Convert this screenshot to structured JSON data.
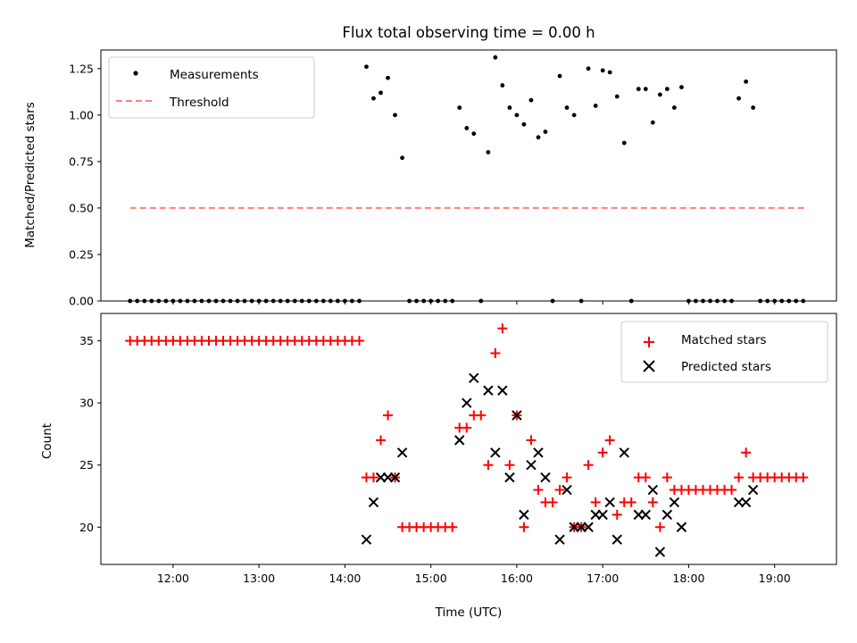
{
  "chart_data": [
    {
      "type": "scatter",
      "title": "Flux total observing time = 0.00 h",
      "xlabel": "",
      "ylabel": "Matched/Predicted stars",
      "ylim": [
        0,
        1.35
      ],
      "yticks": [
        "0.00",
        "0.25",
        "0.50",
        "0.75",
        "1.00",
        "1.25"
      ],
      "legend_position": "top-left",
      "series": [
        {
          "name": "Measurements",
          "marker": "dot",
          "color": "#000000",
          "x": [
            11.5,
            11.583,
            11.667,
            11.75,
            11.833,
            11.917,
            12.0,
            12.083,
            12.167,
            12.25,
            12.333,
            12.417,
            12.5,
            12.583,
            12.667,
            12.75,
            12.833,
            12.917,
            13.0,
            13.083,
            13.167,
            13.25,
            13.333,
            13.417,
            13.5,
            13.583,
            13.667,
            13.75,
            13.833,
            13.917,
            14.0,
            14.083,
            14.167,
            14.25,
            14.333,
            14.417,
            14.5,
            14.583,
            14.667,
            14.75,
            14.833,
            14.917,
            15.0,
            15.083,
            15.167,
            15.25,
            15.333,
            15.417,
            15.5,
            15.583,
            15.667,
            15.75,
            15.833,
            15.917,
            16.0,
            16.083,
            16.167,
            16.25,
            16.333,
            16.417,
            16.5,
            16.583,
            16.667,
            16.75,
            16.833,
            16.917,
            17.0,
            17.083,
            17.167,
            17.25,
            17.333,
            17.417,
            17.5,
            17.583,
            17.667,
            17.75,
            17.833,
            17.917,
            18.0,
            18.083,
            18.167,
            18.25,
            18.333,
            18.417,
            18.5,
            18.583,
            18.667,
            18.75,
            18.833,
            18.917,
            19.0,
            19.083,
            19.167,
            19.25,
            19.333
          ],
          "y": [
            0,
            0,
            0,
            0,
            0,
            0,
            0,
            0,
            0,
            0,
            0,
            0,
            0,
            0,
            0,
            0,
            0,
            0,
            0,
            0,
            0,
            0,
            0,
            0,
            0,
            0,
            0,
            0,
            0,
            0,
            0,
            0,
            0,
            1.26,
            1.09,
            1.12,
            1.2,
            1.0,
            0.77,
            0,
            0,
            0,
            0,
            0,
            0,
            0,
            1.04,
            0.93,
            0.9,
            0,
            0.8,
            1.31,
            1.16,
            1.04,
            1.0,
            0.95,
            1.08,
            0.88,
            0.91,
            0,
            1.21,
            1.04,
            1.0,
            0,
            1.25,
            1.05,
            1.24,
            1.23,
            1.1,
            0.85,
            0,
            1.14,
            1.14,
            0.96,
            1.11,
            1.14,
            1.04,
            1.15,
            0,
            0,
            0,
            0,
            0,
            0,
            0,
            1.09,
            1.18,
            1.04,
            0,
            0,
            0,
            0,
            0,
            0,
            0
          ]
        },
        {
          "name": "Threshold",
          "marker": "dashed-line",
          "color": "#ff7f7f",
          "x": [
            11.5,
            19.35
          ],
          "y": [
            0.5,
            0.5
          ]
        }
      ]
    },
    {
      "type": "scatter",
      "title": "",
      "xlabel": "Time (UTC)",
      "ylabel": "Count",
      "ylim": [
        17,
        37.2
      ],
      "yticks": [
        "20",
        "25",
        "30",
        "35"
      ],
      "xlim": [
        11.16,
        19.72
      ],
      "xticks": [
        "12:00",
        "13:00",
        "14:00",
        "15:00",
        "16:00",
        "17:00",
        "18:00",
        "19:00"
      ],
      "legend_position": "top-right",
      "series": [
        {
          "name": "Matched stars",
          "marker": "plus",
          "color": "#ff0000",
          "x": [
            11.5,
            11.583,
            11.667,
            11.75,
            11.833,
            11.917,
            12.0,
            12.083,
            12.167,
            12.25,
            12.333,
            12.417,
            12.5,
            12.583,
            12.667,
            12.75,
            12.833,
            12.917,
            13.0,
            13.083,
            13.167,
            13.25,
            13.333,
            13.417,
            13.5,
            13.583,
            13.667,
            13.75,
            13.833,
            13.917,
            14.0,
            14.083,
            14.167,
            14.25,
            14.333,
            14.417,
            14.5,
            14.583,
            14.667,
            14.75,
            14.833,
            14.917,
            15.0,
            15.083,
            15.167,
            15.25,
            15.333,
            15.417,
            15.5,
            15.583,
            15.667,
            15.75,
            15.833,
            15.917,
            16.0,
            16.083,
            16.167,
            16.25,
            16.333,
            16.417,
            16.5,
            16.583,
            16.667,
            16.75,
            16.833,
            16.917,
            17.0,
            17.083,
            17.167,
            17.25,
            17.333,
            17.417,
            17.5,
            17.583,
            17.667,
            17.75,
            17.833,
            17.917,
            18.0,
            18.083,
            18.167,
            18.25,
            18.333,
            18.417,
            18.5,
            18.583,
            18.667,
            18.75,
            18.833,
            18.917,
            19.0,
            19.083,
            19.167,
            19.25,
            19.333
          ],
          "y": [
            35,
            35,
            35,
            35,
            35,
            35,
            35,
            35,
            35,
            35,
            35,
            35,
            35,
            35,
            35,
            35,
            35,
            35,
            35,
            35,
            35,
            35,
            35,
            35,
            35,
            35,
            35,
            35,
            35,
            35,
            35,
            35,
            35,
            24,
            24,
            27,
            29,
            24,
            20,
            20,
            20,
            20,
            20,
            20,
            20,
            20,
            28,
            28,
            29,
            29,
            25,
            34,
            36,
            25,
            29,
            20,
            27,
            23,
            22,
            22,
            23,
            24,
            20,
            20,
            25,
            22,
            26,
            27,
            21,
            22,
            22,
            24,
            24,
            22,
            20,
            24,
            23,
            23,
            23,
            23,
            23,
            23,
            23,
            23,
            23,
            24,
            26,
            24,
            24,
            24,
            24,
            24,
            24,
            24,
            24
          ]
        },
        {
          "name": "Predicted stars",
          "marker": "x",
          "color": "#000000",
          "x": [
            14.25,
            14.333,
            14.417,
            14.5,
            14.583,
            14.667,
            15.333,
            15.417,
            15.5,
            15.667,
            15.75,
            15.833,
            15.917,
            16.0,
            16.083,
            16.167,
            16.25,
            16.333,
            16.5,
            16.583,
            16.667,
            16.75,
            16.833,
            16.917,
            17.0,
            17.083,
            17.167,
            17.25,
            17.417,
            17.5,
            17.583,
            17.667,
            17.75,
            17.833,
            17.917,
            18.583,
            18.667,
            18.75
          ],
          "y": [
            19,
            22,
            24,
            24,
            24,
            26,
            27,
            30,
            32,
            31,
            26,
            31,
            24,
            29,
            21,
            25,
            26,
            24,
            19,
            23,
            20,
            20,
            20,
            21,
            21,
            22,
            19,
            26,
            21,
            21,
            23,
            18,
            21,
            22,
            20,
            22,
            22,
            23
          ]
        }
      ]
    }
  ]
}
